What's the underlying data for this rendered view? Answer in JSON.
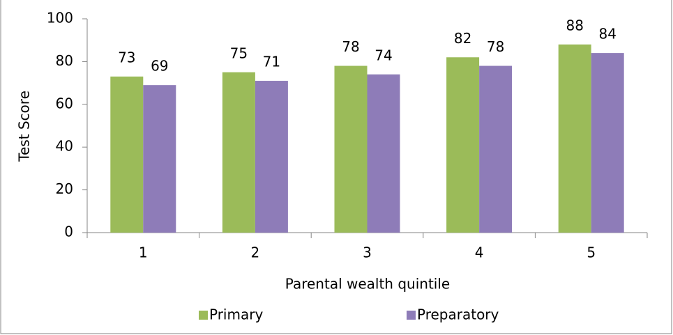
{
  "chart_data": {
    "type": "bar",
    "x_label": "Parental wealth quintile",
    "y_label": "Test Score",
    "categories": [
      "1",
      "2",
      "3",
      "4",
      "5"
    ],
    "series": [
      {
        "name": "Primary",
        "color": "#9bbb59",
        "values": [
          73,
          75,
          78,
          82,
          88
        ]
      },
      {
        "name": "Preparatory",
        "color": "#8e7cb8",
        "values": [
          69,
          71,
          74,
          78,
          84
        ]
      }
    ],
    "ylim": [
      0,
      100
    ],
    "yticks": [
      0,
      20,
      40,
      60,
      80,
      100
    ],
    "grid": false,
    "legend": "bottom"
  }
}
